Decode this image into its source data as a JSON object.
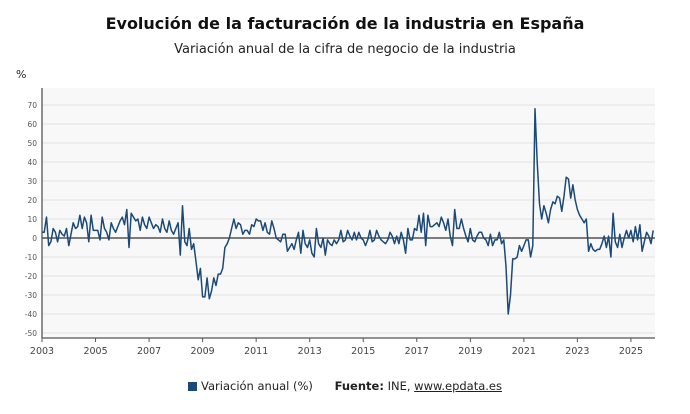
{
  "chart_data": {
    "type": "line",
    "title": "Evolución de la facturación de la industria en España",
    "subtitle": "Variación anual de la cifra de negocio de la industria",
    "ylabel": "%",
    "ylim": [
      -52,
      79
    ],
    "yticks": [
      -50,
      -40,
      -30,
      -20,
      -10,
      0,
      10,
      20,
      30,
      40,
      50,
      60,
      70
    ],
    "xticks": [
      "2003",
      "2005",
      "2007",
      "2009",
      "2011",
      "2013",
      "2015",
      "2017",
      "2019",
      "2021",
      "2023",
      "2025"
    ],
    "x_start": "2003-01",
    "frequency": "monthly",
    "grid": true,
    "legend": "bottom",
    "color": "#1b4a78",
    "series": [
      {
        "name": "Variación anual (%)",
        "values": [
          3,
          3,
          11,
          -4,
          -2,
          5,
          3,
          -2,
          4,
          2,
          1,
          5,
          -4,
          2,
          8,
          5,
          6,
          12,
          5,
          11,
          8,
          -2,
          12,
          4,
          4,
          4,
          -1,
          11,
          5,
          3,
          -1,
          8,
          5,
          3,
          6,
          9,
          11,
          7,
          15,
          -5,
          13,
          11,
          9,
          10,
          4,
          11,
          7,
          5,
          11,
          8,
          5,
          7,
          6,
          3,
          10,
          5,
          3,
          9,
          4,
          2,
          5,
          8,
          -9,
          17,
          -2,
          -4,
          5,
          -6,
          -3,
          -12,
          -22,
          -16,
          -31,
          -31,
          -21,
          -32,
          -28,
          -21,
          -25,
          -19,
          -19,
          -16,
          -5,
          -3,
          0,
          5,
          10,
          5,
          8,
          7,
          2,
          4,
          4,
          2,
          7,
          6,
          10,
          9,
          9,
          4,
          8,
          3,
          2,
          9,
          5,
          0,
          -1,
          -2,
          2,
          2,
          -7,
          -5,
          -3,
          -6,
          -1,
          3,
          -8,
          4,
          -3,
          -5,
          -1,
          -8,
          -10,
          5,
          -3,
          -5,
          0,
          -9,
          -1,
          -3,
          -4,
          -1,
          -3,
          -1,
          4,
          -2,
          -1,
          4,
          1,
          -1,
          3,
          -1,
          3,
          0,
          -1,
          -4,
          -1,
          4,
          -2,
          -1,
          4,
          1,
          -1,
          -2,
          -3,
          -1,
          3,
          1,
          -3,
          1,
          -3,
          3,
          -1,
          -8,
          5,
          -1,
          -1,
          5,
          4,
          12,
          3,
          13,
          -4,
          12,
          6,
          6,
          7,
          8,
          6,
          11,
          8,
          4,
          10,
          1,
          -4,
          15,
          5,
          5,
          10,
          5,
          1,
          -2,
          5,
          -1,
          -2,
          1,
          3,
          3,
          0,
          -1,
          -4,
          2,
          -4,
          -1,
          -1,
          3,
          -3,
          -1,
          -15,
          -40,
          -30,
          -11,
          -11,
          -10,
          -4,
          -7,
          -4,
          -1,
          -1,
          -10,
          -4,
          68,
          40,
          18,
          10,
          17,
          13,
          8,
          15,
          19,
          18,
          22,
          21,
          14,
          22,
          32,
          31,
          21,
          28,
          20,
          15,
          12,
          10,
          8,
          10,
          -7,
          -3,
          -6,
          -7,
          -6,
          -6,
          -3,
          1,
          -5,
          1,
          -10,
          13,
          -2,
          -5,
          2,
          -5,
          0,
          4,
          0,
          4,
          -2,
          6,
          -1,
          7,
          -7,
          -2,
          3,
          1,
          -3,
          4
        ]
      }
    ]
  },
  "legend": {
    "series_label": "Variación anual (%)",
    "source_label": "Fuente:",
    "source_text": "INE, ",
    "source_link": "www.epdata.es"
  }
}
